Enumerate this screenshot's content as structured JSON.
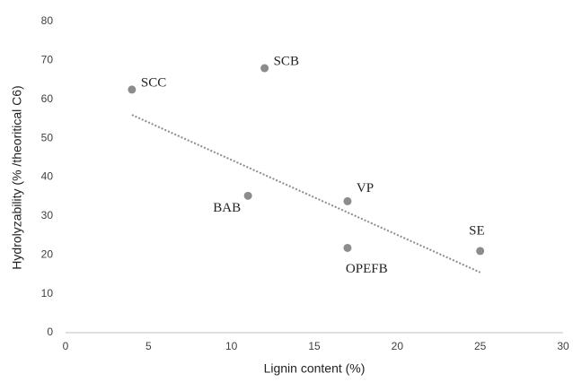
{
  "chart_data": {
    "type": "scatter",
    "x_label": "Lignin content (%)",
    "y_label": "Hydrolyzability (% /theoritical C6)",
    "series": [
      {
        "color": "#8c8c8c",
        "x": [
          4,
          12,
          11,
          17,
          17,
          25
        ],
        "values": [
          62.5,
          68,
          35.2,
          33.8,
          21.8,
          21
        ],
        "point_labels": [
          "SCC",
          "SCB",
          "BAB",
          "VP",
          "OPEFB",
          "SE"
        ]
      }
    ],
    "trendline": {
      "x": [
        4,
        25
      ],
      "values": [
        56,
        15.5
      ],
      "color": "#8c8c8c"
    },
    "xlim": [
      0,
      30
    ],
    "xticks": [
      0,
      5,
      10,
      15,
      20,
      25,
      30
    ],
    "ylim": [
      0,
      80
    ],
    "yticks": [
      0,
      10,
      20,
      30,
      40,
      50,
      60,
      70,
      80
    ],
    "grid": false
  }
}
